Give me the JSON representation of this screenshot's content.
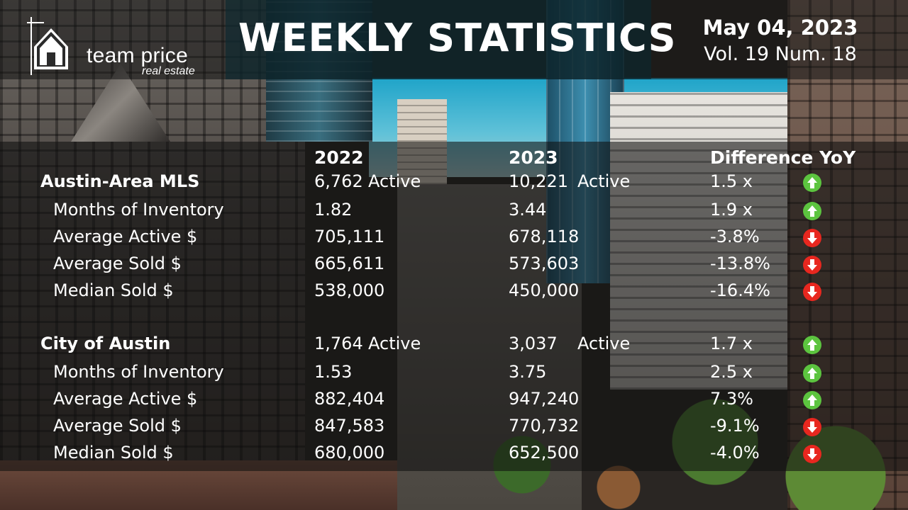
{
  "brand": {
    "name": "team price",
    "subtitle": "real estate"
  },
  "header": {
    "title": "WEEKLY STATISTICS",
    "date": "May 04, 2023",
    "volume": "Vol. 19 Num. 18"
  },
  "table": {
    "columns": [
      "2022",
      "2023",
      "Difference YoY"
    ],
    "rows": [
      {
        "label": "Austin-Area MLS",
        "section": true,
        "v2022": "6,762",
        "active2022": "Active",
        "v2023": "10,221",
        "active2023": "Active",
        "diff": "1.5 x",
        "trend": "up"
      },
      {
        "label": "Months of Inventory",
        "v2022": "1.82",
        "v2023": "3.44",
        "diff": "1.9 x",
        "trend": "up"
      },
      {
        "label": "Average Active $",
        "v2022": "705,111",
        "v2023": "678,118",
        "diff": "-3.8%",
        "trend": "down"
      },
      {
        "label": "Average Sold $",
        "v2022": "665,611",
        "v2023": "573,603",
        "diff": "-13.8%",
        "trend": "down"
      },
      {
        "label": "Median Sold $",
        "v2022": "538,000",
        "v2023": "450,000",
        "diff": "-16.4%",
        "trend": "down"
      },
      {
        "label": "City of Austin",
        "section": true,
        "v2022": "1,764",
        "active2022": "Active",
        "v2023": "3,037",
        "active2023": "Active",
        "diff": "1.7 x",
        "trend": "up"
      },
      {
        "label": "Months of Inventory",
        "v2022": "1.53",
        "v2023": "3.75",
        "diff": "2.5 x",
        "trend": "up"
      },
      {
        "label": "Average Active $",
        "v2022": "882,404",
        "v2023": "947,240",
        "diff": "7.3%",
        "trend": "up"
      },
      {
        "label": "Average Sold $",
        "v2022": "847,583",
        "v2023": "770,732",
        "diff": "-9.1%",
        "trend": "down"
      },
      {
        "label": "Median Sold $",
        "v2022": "680,000",
        "v2023": "652,500",
        "diff": "-4.0%",
        "trend": "down"
      }
    ]
  },
  "icons": {
    "up": "arrow-up-circle-icon",
    "down": "arrow-down-circle-icon"
  },
  "colors": {
    "up": "#5cc43f",
    "down": "#e8271f"
  }
}
